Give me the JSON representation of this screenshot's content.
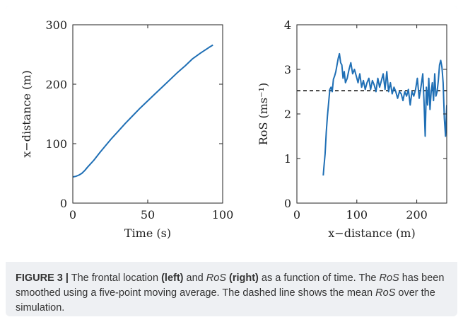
{
  "chart_data": [
    {
      "type": "line",
      "xlabel": "Time (s)",
      "ylabel": "x−distance (m)",
      "xlim": [
        0,
        100
      ],
      "ylim": [
        0,
        300
      ],
      "xticks": [
        0,
        50,
        100
      ],
      "yticks": [
        0,
        100,
        200,
        300
      ],
      "series": [
        {
          "color": "#1f6fb5",
          "x": [
            0,
            2,
            4,
            6,
            8,
            10,
            14,
            18,
            22,
            26,
            30,
            35,
            40,
            45,
            50,
            55,
            60,
            65,
            70,
            75,
            80,
            85,
            88,
            91,
            93.5
          ],
          "y": [
            44,
            45,
            47,
            50,
            55,
            61,
            72,
            85,
            97,
            109,
            120,
            134,
            147,
            160,
            172,
            184,
            196,
            208,
            220,
            231,
            243,
            252,
            257,
            262,
            266
          ]
        }
      ]
    },
    {
      "type": "line",
      "xlabel": "x−distance (m)",
      "ylabel": "RoS (ms⁻¹)",
      "xlim": [
        0,
        250
      ],
      "ylim": [
        0,
        4
      ],
      "xticks": [
        0,
        100,
        200
      ],
      "yticks": [
        0,
        1,
        2,
        3,
        4
      ],
      "mean_line": {
        "value": 2.52,
        "style": "dashed",
        "color": "#000000"
      },
      "series": [
        {
          "color": "#1f6fb5",
          "x": [
            44,
            45,
            47,
            49,
            51,
            53,
            55,
            57,
            59,
            61,
            63,
            65,
            67,
            69,
            71,
            73,
            75,
            77,
            79,
            81,
            84,
            87,
            90,
            93,
            96,
            99,
            102,
            105,
            108,
            111,
            114,
            117,
            120,
            123,
            126,
            129,
            132,
            135,
            138,
            141,
            144,
            147,
            150,
            153,
            156,
            159,
            162,
            165,
            168,
            171,
            174,
            177,
            180,
            183,
            186,
            189,
            192,
            195,
            198,
            201,
            204,
            207,
            210,
            212,
            214,
            216,
            218,
            220,
            222,
            224,
            226,
            228,
            230,
            232,
            234,
            236,
            238,
            240,
            242,
            244,
            246,
            248,
            250
          ],
          "y": [
            0.62,
            0.8,
            1.1,
            1.6,
            1.95,
            2.25,
            2.55,
            2.6,
            2.5,
            2.78,
            2.85,
            2.95,
            3.1,
            3.25,
            3.35,
            3.15,
            3.1,
            2.8,
            2.95,
            2.7,
            2.8,
            3.0,
            3.15,
            2.9,
            3.0,
            2.85,
            2.7,
            2.9,
            2.6,
            2.75,
            2.55,
            2.7,
            2.8,
            2.55,
            2.75,
            2.65,
            2.5,
            2.8,
            2.6,
            2.75,
            2.9,
            2.55,
            2.95,
            2.5,
            2.7,
            2.45,
            2.6,
            2.5,
            2.35,
            2.5,
            2.45,
            2.3,
            2.5,
            2.4,
            2.55,
            2.2,
            2.5,
            2.4,
            2.55,
            2.8,
            2.35,
            2.6,
            2.9,
            2.3,
            1.5,
            2.6,
            2.2,
            2.8,
            2.1,
            2.5,
            2.7,
            2.3,
            2.9,
            2.4,
            2.5,
            2.75,
            3.1,
            3.2,
            3.05,
            2.7,
            1.9,
            1.5,
            2.2
          ]
        }
      ]
    }
  ],
  "caption": {
    "label": "FIGURE 3 |",
    "t1": " The frontal location ",
    "b1": "(left)",
    "t2": " and ",
    "i1": "RoS",
    "t3": " ",
    "b2": "(right)",
    "t4": " as a function of time. The ",
    "i2": "RoS",
    "t5": " has been smoothed using a five-point moving average. The dashed line shows the mean ",
    "i3": "RoS",
    "t6": " over the simulation."
  }
}
